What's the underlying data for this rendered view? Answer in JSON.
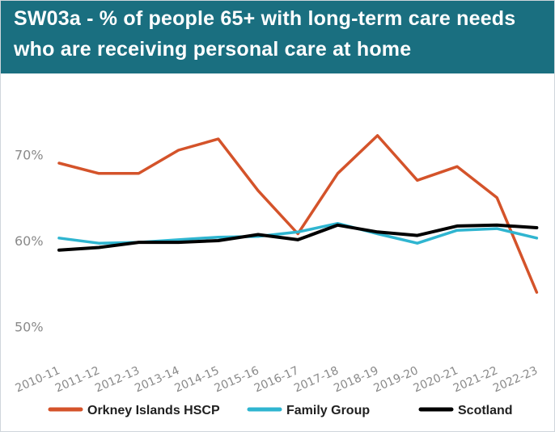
{
  "title": {
    "line1": "SW03a - % of people 65+ with long-term care needs",
    "line2": "who are receiving personal care at home"
  },
  "chart_data": {
    "type": "line",
    "title": "SW03a - % of people 65+ with long-term care needs who are receiving personal care at home",
    "categories": [
      "2010-11",
      "2011-12",
      "2012-13",
      "2013-14",
      "2014-15",
      "2015-16",
      "2016-17",
      "2017-18",
      "2018-19",
      "2019-20",
      "2020-21",
      "2021-22",
      "2022-23"
    ],
    "y_ticks": [
      50,
      60,
      70
    ],
    "y_tick_labels": [
      "50%",
      "60%",
      "70%"
    ],
    "ylim": [
      49.5,
      75
    ],
    "grid": false,
    "legend_position": "bottom",
    "series": [
      {
        "name": "Orkney Islands HSCP",
        "color": "#d4532a",
        "values": [
          69.0,
          67.8,
          67.8,
          70.5,
          71.8,
          65.8,
          60.8,
          67.8,
          72.2,
          67.0,
          68.6,
          65.0,
          54.0
        ]
      },
      {
        "name": "Family Group",
        "color": "#2fb5d0",
        "values": [
          60.3,
          59.7,
          59.8,
          60.1,
          60.4,
          60.5,
          61.0,
          62.0,
          60.8,
          59.7,
          61.2,
          61.4,
          60.3
        ]
      },
      {
        "name": "Scotland",
        "color": "#000000",
        "values": [
          58.9,
          59.2,
          59.8,
          59.8,
          60.0,
          60.7,
          60.1,
          61.8,
          61.0,
          60.6,
          61.7,
          61.8,
          61.5
        ]
      }
    ]
  }
}
